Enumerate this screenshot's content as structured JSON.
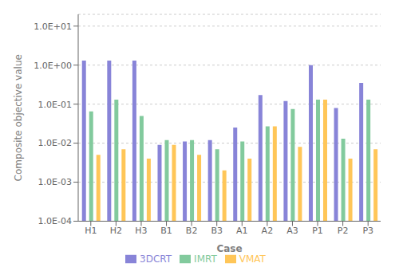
{
  "chart_data": {
    "type": "bar",
    "x_label": "Case",
    "y_label": "Composite objective value",
    "categories": [
      "H1",
      "H2",
      "H3",
      "B1",
      "B2",
      "B3",
      "A1",
      "A2",
      "A3",
      "P1",
      "P2",
      "P3"
    ],
    "series": [
      {
        "name": "3DCRT",
        "color": "#8884d8",
        "values": [
          1.3,
          1.3,
          1.3,
          0.009,
          0.011,
          0.012,
          0.025,
          0.17,
          0.12,
          1.0,
          0.08,
          0.35
        ]
      },
      {
        "name": "IMRT",
        "color": "#82ca9d",
        "values": [
          0.065,
          0.13,
          0.05,
          0.012,
          0.012,
          0.007,
          0.011,
          0.027,
          0.075,
          0.13,
          0.013,
          0.13
        ]
      },
      {
        "name": "VMAT",
        "color": "#ffc658",
        "values": [
          0.005,
          0.007,
          0.004,
          0.009,
          0.005,
          0.002,
          0.004,
          0.027,
          0.008,
          0.13,
          0.004,
          0.007
        ]
      }
    ],
    "log": "y",
    "ylim": [
      0.0001,
      20
    ],
    "yticks": [
      {
        "value": 0.0001,
        "label": "1.0E-04"
      },
      {
        "value": 0.001,
        "label": "1.0E-03"
      },
      {
        "value": 0.01,
        "label": "1.0E-02"
      },
      {
        "value": 0.1,
        "label": "1.0E-01"
      },
      {
        "value": 1,
        "label": "1.0E+00"
      },
      {
        "value": 10,
        "label": "1.0E+01"
      }
    ],
    "grid": true,
    "legend": "bottom"
  }
}
